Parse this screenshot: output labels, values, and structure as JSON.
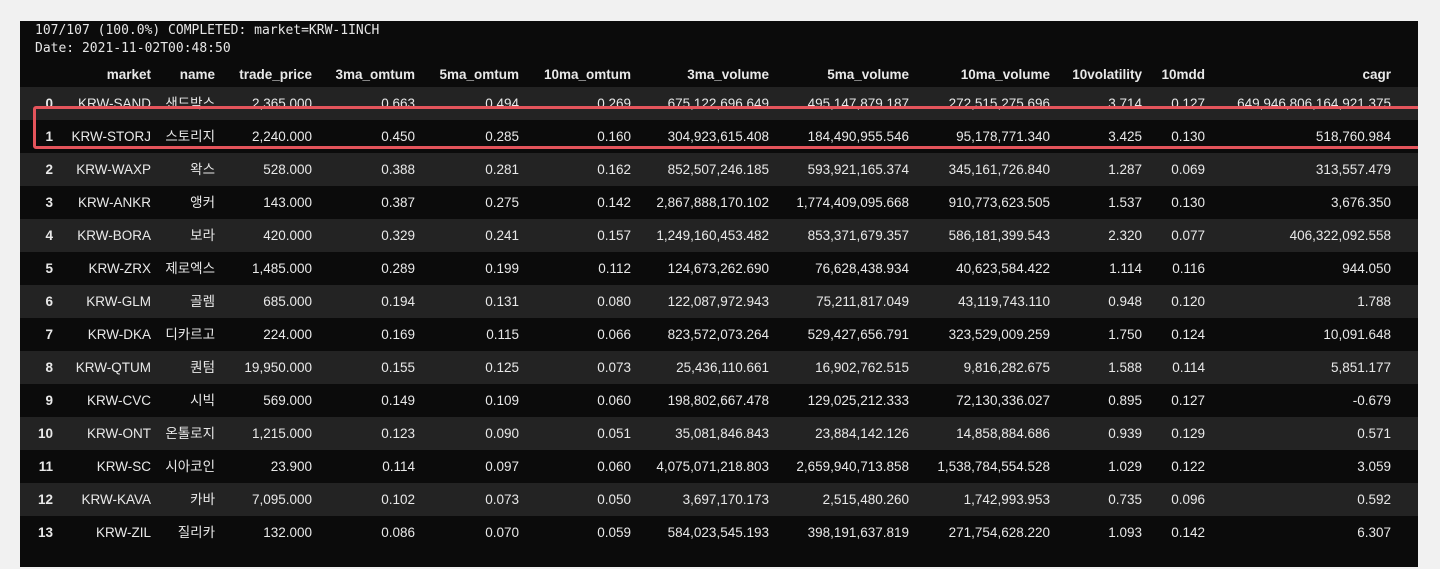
{
  "log": {
    "progress_line": "107/107 (100.0%) COMPLETED: market=KRW-1INCH",
    "date_line": "Date: 2021-11-02T00:48:50"
  },
  "table": {
    "columns": [
      "market",
      "name",
      "trade_price",
      "3ma_omtum",
      "5ma_omtum",
      "10ma_omtum",
      "3ma_volume",
      "5ma_volume",
      "10ma_volume",
      "10volatility",
      "10mdd",
      "cagr"
    ],
    "rows": [
      {
        "idx": "0",
        "market": "KRW-SAND",
        "name": "샌드박스",
        "trade_price": "2,365.000",
        "m3": "0.663",
        "m5": "0.494",
        "m10": "0.269",
        "v3": "675,122,696.649",
        "v5": "495,147,879.187",
        "v10": "272,515,275.696",
        "vol": "3.714",
        "mdd": "0.127",
        "cagr": "649,946,806,164,921.375"
      },
      {
        "idx": "1",
        "market": "KRW-STORJ",
        "name": "스토리지",
        "trade_price": "2,240.000",
        "m3": "0.450",
        "m5": "0.285",
        "m10": "0.160",
        "v3": "304,923,615.408",
        "v5": "184,490,955.546",
        "v10": "95,178,771.340",
        "vol": "3.425",
        "mdd": "0.130",
        "cagr": "518,760.984"
      },
      {
        "idx": "2",
        "market": "KRW-WAXP",
        "name": "왁스",
        "trade_price": "528.000",
        "m3": "0.388",
        "m5": "0.281",
        "m10": "0.162",
        "v3": "852,507,246.185",
        "v5": "593,921,165.374",
        "v10": "345,161,726.840",
        "vol": "1.287",
        "mdd": "0.069",
        "cagr": "313,557.479"
      },
      {
        "idx": "3",
        "market": "KRW-ANKR",
        "name": "앵커",
        "trade_price": "143.000",
        "m3": "0.387",
        "m5": "0.275",
        "m10": "0.142",
        "v3": "2,867,888,170.102",
        "v5": "1,774,409,095.668",
        "v10": "910,773,623.505",
        "vol": "1.537",
        "mdd": "0.130",
        "cagr": "3,676.350"
      },
      {
        "idx": "4",
        "market": "KRW-BORA",
        "name": "보라",
        "trade_price": "420.000",
        "m3": "0.329",
        "m5": "0.241",
        "m10": "0.157",
        "v3": "1,249,160,453.482",
        "v5": "853,371,679.357",
        "v10": "586,181,399.543",
        "vol": "2.320",
        "mdd": "0.077",
        "cagr": "406,322,092.558"
      },
      {
        "idx": "5",
        "market": "KRW-ZRX",
        "name": "제로엑스",
        "trade_price": "1,485.000",
        "m3": "0.289",
        "m5": "0.199",
        "m10": "0.112",
        "v3": "124,673,262.690",
        "v5": "76,628,438.934",
        "v10": "40,623,584.422",
        "vol": "1.114",
        "mdd": "0.116",
        "cagr": "944.050"
      },
      {
        "idx": "6",
        "market": "KRW-GLM",
        "name": "골렘",
        "trade_price": "685.000",
        "m3": "0.194",
        "m5": "0.131",
        "m10": "0.080",
        "v3": "122,087,972.943",
        "v5": "75,211,817.049",
        "v10": "43,119,743.110",
        "vol": "0.948",
        "mdd": "0.120",
        "cagr": "1.788"
      },
      {
        "idx": "7",
        "market": "KRW-DKA",
        "name": "디카르고",
        "trade_price": "224.000",
        "m3": "0.169",
        "m5": "0.115",
        "m10": "0.066",
        "v3": "823,572,073.264",
        "v5": "529,427,656.791",
        "v10": "323,529,009.259",
        "vol": "1.750",
        "mdd": "0.124",
        "cagr": "10,091.648"
      },
      {
        "idx": "8",
        "market": "KRW-QTUM",
        "name": "퀀텀",
        "trade_price": "19,950.000",
        "m3": "0.155",
        "m5": "0.125",
        "m10": "0.073",
        "v3": "25,436,110.661",
        "v5": "16,902,762.515",
        "v10": "9,816,282.675",
        "vol": "1.588",
        "mdd": "0.114",
        "cagr": "5,851.177"
      },
      {
        "idx": "9",
        "market": "KRW-CVC",
        "name": "시빅",
        "trade_price": "569.000",
        "m3": "0.149",
        "m5": "0.109",
        "m10": "0.060",
        "v3": "198,802,667.478",
        "v5": "129,025,212.333",
        "v10": "72,130,336.027",
        "vol": "0.895",
        "mdd": "0.127",
        "cagr": "-0.679"
      },
      {
        "idx": "10",
        "market": "KRW-ONT",
        "name": "온톨로지",
        "trade_price": "1,215.000",
        "m3": "0.123",
        "m5": "0.090",
        "m10": "0.051",
        "v3": "35,081,846.843",
        "v5": "23,884,142.126",
        "v10": "14,858,884.686",
        "vol": "0.939",
        "mdd": "0.129",
        "cagr": "0.571"
      },
      {
        "idx": "11",
        "market": "KRW-SC",
        "name": "시아코인",
        "trade_price": "23.900",
        "m3": "0.114",
        "m5": "0.097",
        "m10": "0.060",
        "v3": "4,075,071,218.803",
        "v5": "2,659,940,713.858",
        "v10": "1,538,784,554.528",
        "vol": "1.029",
        "mdd": "0.122",
        "cagr": "3.059"
      },
      {
        "idx": "12",
        "market": "KRW-KAVA",
        "name": "카바",
        "trade_price": "7,095.000",
        "m3": "0.102",
        "m5": "0.073",
        "m10": "0.050",
        "v3": "3,697,170.173",
        "v5": "2,515,480.260",
        "v10": "1,742,993.953",
        "vol": "0.735",
        "mdd": "0.096",
        "cagr": "0.592"
      },
      {
        "idx": "13",
        "market": "KRW-ZIL",
        "name": "질리카",
        "trade_price": "132.000",
        "m3": "0.086",
        "m5": "0.070",
        "m10": "0.059",
        "v3": "584,023,545.193",
        "v5": "398,191,637.819",
        "v10": "271,754,628.220",
        "vol": "1.093",
        "mdd": "0.142",
        "cagr": "6.307"
      }
    ]
  },
  "highlight": {
    "row_index": "0",
    "color": "#e4545b"
  }
}
